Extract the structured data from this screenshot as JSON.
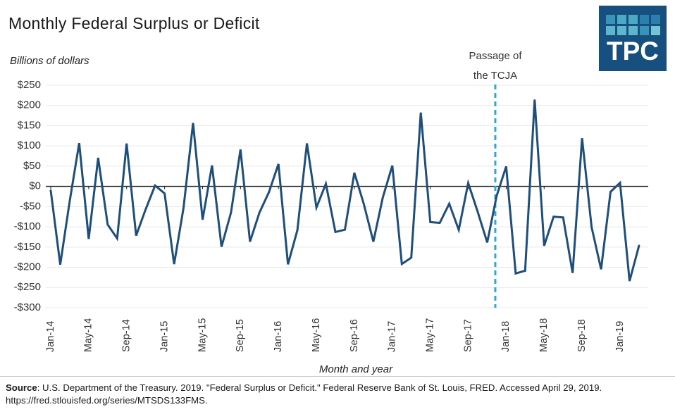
{
  "title": "Monthly Federal Surplus or Deficit",
  "y_axis_note": "Billions of dollars",
  "x_axis_title": "Month and year",
  "annotation": {
    "line1": "Passage of",
    "line2": "the TCJA"
  },
  "logo": {
    "text": "TPC",
    "bg": "#17507F",
    "squares": [
      "#3A93B8",
      "#4DA8C6",
      "#4DA8C6",
      "#2C7EAC",
      "#2C7EAC",
      "#5FB5CE",
      "#5FB5CE",
      "#5FB5CE",
      "#3A93B8",
      "#76C3D9"
    ]
  },
  "footer": {
    "source_label": "Source",
    "line1_rest": ": U.S. Department of the Treasury. 2019. \"Federal Surplus or Deficit.\" Federal Reserve Bank of St. Louis, FRED. Accessed April 29, 2019.",
    "line2": "https://fred.stlouisfed.org/series/MTSDS133FMS."
  },
  "chart_data": {
    "type": "line",
    "title": "Monthly Federal Surplus or Deficit",
    "ylabel": "Billions of dollars",
    "xlabel": "Month and year",
    "ylim": [
      -300,
      250
    ],
    "ytick_step": 50,
    "grid": true,
    "legend": "none",
    "line_color": "#1F4E79",
    "zero_line_color": "#1a1a1a",
    "grid_color": "#E8E8E8",
    "tick_label_color": "#333333",
    "x": [
      "Jan-14",
      "Feb-14",
      "Mar-14",
      "Apr-14",
      "May-14",
      "Jun-14",
      "Jul-14",
      "Aug-14",
      "Sep-14",
      "Oct-14",
      "Nov-14",
      "Dec-14",
      "Jan-15",
      "Feb-15",
      "Mar-15",
      "Apr-15",
      "May-15",
      "Jun-15",
      "Jul-15",
      "Aug-15",
      "Sep-15",
      "Oct-15",
      "Nov-15",
      "Dec-15",
      "Jan-16",
      "Feb-16",
      "Mar-16",
      "Apr-16",
      "May-16",
      "Jun-16",
      "Jul-16",
      "Aug-16",
      "Sep-16",
      "Oct-16",
      "Nov-16",
      "Dec-16",
      "Jan-17",
      "Feb-17",
      "Mar-17",
      "Apr-17",
      "May-17",
      "Jun-17",
      "Jul-17",
      "Aug-17",
      "Sep-17",
      "Oct-17",
      "Nov-17",
      "Dec-17",
      "Jan-18",
      "Feb-18",
      "Mar-18",
      "Apr-18",
      "May-18",
      "Jun-18",
      "Jul-18",
      "Aug-18",
      "Sep-18",
      "Oct-18",
      "Nov-18",
      "Dec-18",
      "Jan-19",
      "Feb-19",
      "Mar-19"
    ],
    "values": [
      -10.4,
      -193.5,
      -36.9,
      106.9,
      -130.0,
      70.5,
      -94.6,
      -128.7,
      105.8,
      -121.7,
      -56.8,
      1.9,
      -17.5,
      -192.3,
      -52.9,
      156.7,
      -82.4,
      51.8,
      -149.2,
      -64.4,
      91.1,
      -136.5,
      -64.5,
      -14.4,
      55.2,
      -192.6,
      -108.0,
      106.3,
      -52.5,
      6.3,
      -112.8,
      -107.1,
      33.4,
      -44.2,
      -136.7,
      -27.5,
      51.3,
      -192.0,
      -176.2,
      182.4,
      -88.4,
      -90.2,
      -42.9,
      -107.7,
      8.0,
      -63.2,
      -138.6,
      -23.2,
      49.2,
      -215.2,
      -208.7,
      214.3,
      -146.8,
      -74.9,
      -76.9,
      -214.1,
      119.1,
      -100.5,
      -204.9,
      -13.5,
      8.7,
      -234.0,
      -146.9
    ],
    "xtick_every": 4,
    "xtick_labels": [
      "Jan-14",
      "May-14",
      "Sep-14",
      "Jan-15",
      "May-15",
      "Sep-15",
      "Jan-16",
      "May-16",
      "Sep-16",
      "Jan-17",
      "May-17",
      "Sep-17",
      "Jan-18",
      "May-18",
      "Sep-18",
      "Jan-19"
    ],
    "event_line": {
      "x": "Dec-17",
      "label": "Passage of the TCJA",
      "color": "#29A9E0",
      "style": "dashed"
    }
  }
}
